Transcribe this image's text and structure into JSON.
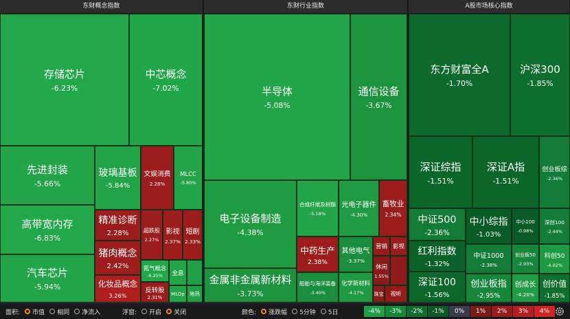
{
  "panels": [
    {
      "title": "东财概念指数",
      "tiles": [
        {
          "name": "存储芯片",
          "change": "-6.23%",
          "color": "#22a84a"
        },
        {
          "name": "中芯概念",
          "change": "-7.02%",
          "color": "#1fa747"
        },
        {
          "name": "先进封装",
          "change": "-5.66%",
          "color": "#22a448"
        },
        {
          "name": "高带宽内存",
          "change": "-6.83%",
          "color": "#21a849"
        },
        {
          "name": "汽车芯片",
          "change": "-5.94%",
          "color": "#22a548"
        },
        {
          "name": "玻璃基板",
          "change": "-5.84%",
          "color": "#22a548"
        },
        {
          "name": "文娱消费",
          "change": "2.28%",
          "color": "#9b1c1c"
        },
        {
          "name": "MLCC",
          "change": "-5.80%",
          "color": "#22a548"
        },
        {
          "name": "精准诊断",
          "change": "2.28%",
          "color": "#9b1c1c"
        },
        {
          "name": "猪肉概念",
          "change": "2.42%",
          "color": "#9e1c1c"
        },
        {
          "name": "化妆品概念",
          "change": "3.26%",
          "color": "#b01f1f"
        },
        {
          "name": "超跌股",
          "change": "2.27%",
          "color": "#9b1c1c"
        },
        {
          "name": "影视",
          "change": "2.37%",
          "color": "#9d1c1c"
        },
        {
          "name": "短剧",
          "change": "2.33%",
          "color": "#9c1c1c"
        },
        {
          "name": "氮气概念",
          "change": "-6.25%",
          "color": "#22a84a"
        },
        {
          "name": "全息",
          "color": "#22a548"
        },
        {
          "color": "#20a046"
        },
        {
          "name": "反转股",
          "change": "2.31%",
          "color": "#9c1c1c"
        },
        {
          "name": "MLOp",
          "color": "#22a548"
        },
        {
          "name": "地热",
          "color": "#20a046"
        }
      ]
    },
    {
      "title": "东财行业指数",
      "tiles": [
        {
          "name": "半导体",
          "change": "-5.08%",
          "color": "#22a548"
        },
        {
          "name": "通信设备",
          "change": "-3.67%",
          "color": "#1c933f"
        },
        {
          "name": "电子设备制造",
          "change": "-4.38%",
          "color": "#1f9c43"
        },
        {
          "name": "金属非金属新材料",
          "change": "-3.73%",
          "color": "#1c943f"
        },
        {
          "name": "合成纤维及树脂",
          "change": "-5.18%",
          "color": "#22a548"
        },
        {
          "name": "光电子器件",
          "change": "-4.30%",
          "color": "#1f9b43"
        },
        {
          "name": "畜牧业",
          "change": "2.34%",
          "color": "#9c1c1c"
        },
        {
          "name": "中药生产",
          "change": "2.38%",
          "color": "#9d1c1c"
        },
        {
          "name": "其他电气",
          "change": "-3.37%",
          "color": "#1a8e3d"
        },
        {
          "name": "营销",
          "color": "#961b1b"
        },
        {
          "name": "影视",
          "color": "#9a1c1c"
        },
        {
          "name": "休闲",
          "change": "1.55%",
          "color": "#8a1a1a"
        },
        {
          "color": "#8e1a1a"
        },
        {
          "name": "船舶与海洋装备",
          "change": "-3.40%",
          "color": "#1a8e3d"
        },
        {
          "name": "化学新材料",
          "change": "-4.17%",
          "color": "#1e9a42"
        },
        {
          "name": "珠宝",
          "color": "#8e1a1a"
        },
        {
          "name": "视听",
          "color": "#951b1b"
        }
      ]
    },
    {
      "title": "A股市场核心指数",
      "tiles": [
        {
          "name": "东方财富全A",
          "change": "-1.70%",
          "color": "#0d6a2c"
        },
        {
          "name": "沪深300",
          "change": "-1.85%",
          "color": "#0e6e2d"
        },
        {
          "name": "深证综指",
          "change": "-1.51%",
          "color": "#0c662a"
        },
        {
          "name": "深证A指",
          "change": "-1.51%",
          "color": "#0c662a"
        },
        {
          "name": "创业板综",
          "change": "-2.36%",
          "color": "#127b36"
        },
        {
          "name": "中证500",
          "change": "-2.36%",
          "color": "#127b36"
        },
        {
          "name": "红利指数",
          "change": "-1.32%",
          "color": "#0b6229"
        },
        {
          "name": "深证100",
          "change": "-1.56%",
          "color": "#0c672b"
        },
        {
          "name": "中小综指",
          "change": "-1.03%",
          "color": "#0a5c26"
        },
        {
          "name": "中证1000",
          "change": "-2.38%",
          "color": "#127c36"
        },
        {
          "name": "创业板指",
          "change": "-2.95%",
          "color": "#16873a"
        },
        {
          "name": "中小100",
          "change": "-0.98%",
          "color": "#0a5a25"
        },
        {
          "name": "深创100",
          "change": "-2.44%",
          "color": "#137d37"
        },
        {
          "name": "创业板50",
          "change": "-2.93%",
          "color": "#16873a"
        },
        {
          "name": "科创50",
          "change": "-4.02%",
          "color": "#1e9a42"
        },
        {
          "name": "创成长",
          "change": "-4.28%",
          "color": "#1f9b43"
        },
        {
          "name": "创价值",
          "change": "-1.85%",
          "color": "#0e6e2d"
        }
      ]
    }
  ],
  "controls": [
    {
      "label": "面积:",
      "options": [
        "市值",
        "相同",
        "净流入"
      ],
      "selected": 0
    },
    {
      "label": "浮窗:",
      "options": [
        "开启",
        "关闭"
      ],
      "selected": 1
    },
    {
      "label": "颜色:",
      "options": [
        "涨跌幅",
        "5分钟",
        "5日"
      ],
      "selected": 0
    }
  ],
  "legend": [
    {
      "label": "-4%",
      "color": "#1fa045"
    },
    {
      "label": "-3%",
      "color": "#15883a"
    },
    {
      "label": "-2%",
      "color": "#0f6e2e"
    },
    {
      "label": "-1%",
      "color": "#0b5a26"
    },
    {
      "label": "0%",
      "color": "#3a3a4c"
    },
    {
      "label": "1%",
      "color": "#7a1a1a"
    },
    {
      "label": "2%",
      "color": "#981c1c"
    },
    {
      "label": "3%",
      "color": "#b51f1f"
    },
    {
      "label": "4%",
      "color": "#d22323"
    }
  ]
}
